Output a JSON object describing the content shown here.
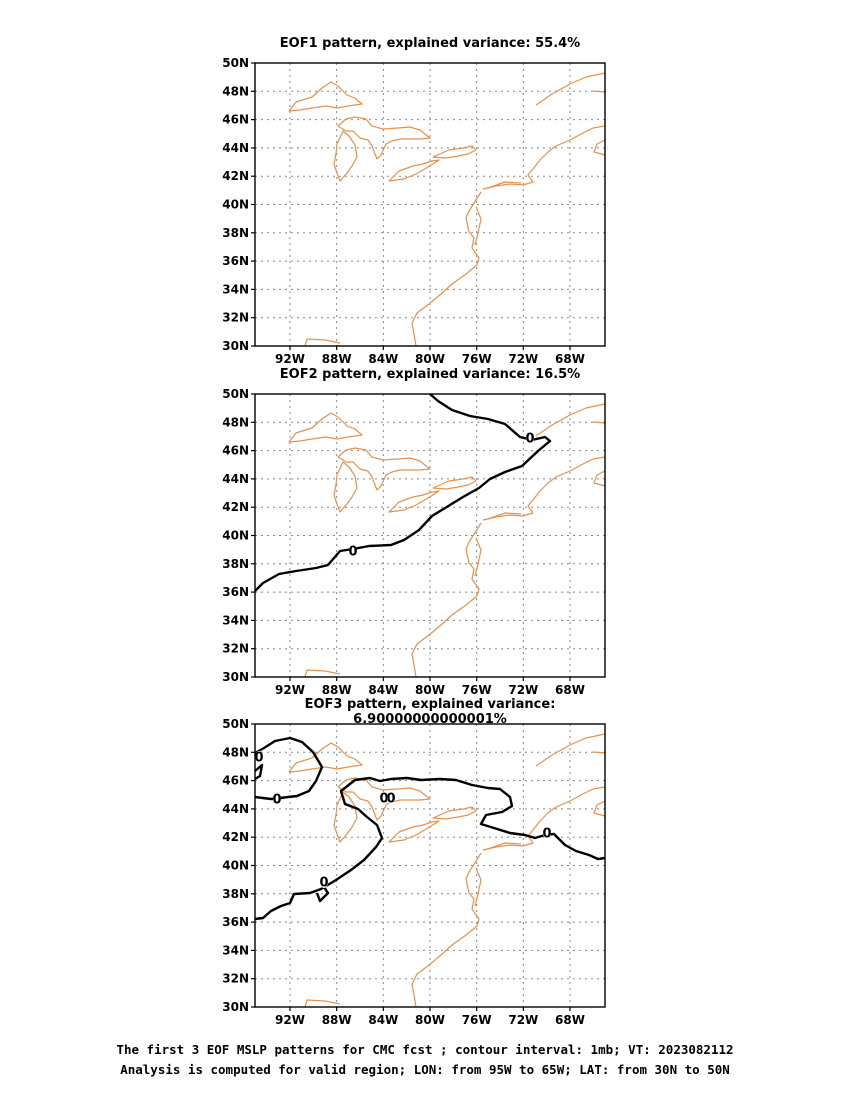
{
  "panels": [
    {
      "title": "EOF1 pattern, explained variance: 55.4%"
    },
    {
      "title": "EOF2 pattern, explained variance: 16.5%"
    },
    {
      "title": "EOF3 pattern, explained variance: 6.90000000000001%"
    }
  ],
  "axes": {
    "lat_ticks": [
      "30N",
      "32N",
      "34N",
      "36N",
      "38N",
      "40N",
      "42N",
      "44N",
      "46N",
      "48N",
      "50N"
    ],
    "lon_ticks": [
      "92W",
      "88W",
      "84W",
      "80W",
      "76W",
      "72W",
      "68W"
    ],
    "lat_range": [
      30,
      50
    ],
    "lon_range": [
      -95,
      -65
    ]
  },
  "contour_label": "0",
  "colors": {
    "coastline": "#e8914a",
    "contour": "#000000",
    "grid": "#888888"
  },
  "caption": {
    "line1": "The first 3 EOF MSLP patterns for CMC fcst ; contour interval: 1mb; VT: 2023082112",
    "line2": "Analysis is computed for valid region; LON: from 95W to 65W; LAT: from 30N to 50N"
  }
}
